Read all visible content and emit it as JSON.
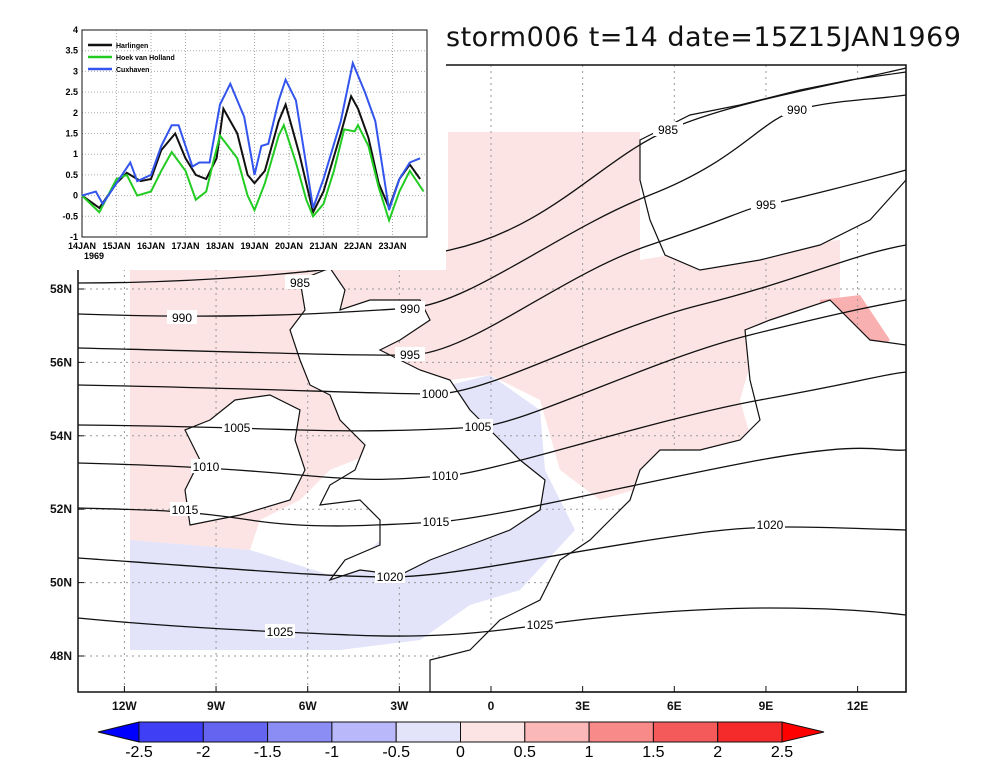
{
  "title": "storm006  t=14  date=15Z15JAN1969",
  "map": {
    "lon_ticks": [
      {
        "v": -12,
        "label": "12W"
      },
      {
        "v": -9,
        "label": "9W"
      },
      {
        "v": -6,
        "label": "6W"
      },
      {
        "v": -3,
        "label": "3W"
      },
      {
        "v": 0,
        "label": "0"
      },
      {
        "v": 3,
        "label": "3E"
      },
      {
        "v": 6,
        "label": "6E"
      },
      {
        "v": 9,
        "label": "9E"
      },
      {
        "v": 12,
        "label": "12E"
      }
    ],
    "lat_ticks": [
      {
        "v": 48,
        "label": "48N"
      },
      {
        "v": 50,
        "label": "50N"
      },
      {
        "v": 52,
        "label": "52N"
      },
      {
        "v": 54,
        "label": "54N"
      },
      {
        "v": 56,
        "label": "56N"
      },
      {
        "v": 58,
        "label": "58N"
      }
    ],
    "isobar_labels": [
      "985",
      "985",
      "990",
      "990",
      "990",
      "995",
      "995",
      "1000",
      "1005",
      "1005",
      "1010",
      "1010",
      "1015",
      "1015",
      "1020",
      "1020",
      "1025",
      "1025"
    ]
  },
  "colorbar": {
    "labels": [
      "-2.5",
      "-2",
      "-1.5",
      "-1",
      "-0.5",
      "0",
      "0.5",
      "1",
      "1.5",
      "2",
      "2.5"
    ],
    "colors": [
      "#0000ff",
      "#3f3ff5",
      "#6464f0",
      "#8c8cf5",
      "#b8b8fa",
      "#e3e3fa",
      "#fde4e4",
      "#fbb8b8",
      "#f98a8a",
      "#f55a5a",
      "#f52a2a",
      "#ff0000"
    ]
  },
  "chart_data": {
    "type": "line",
    "title": "",
    "xlabel": "",
    "ylabel": "",
    "ylim": [
      -1,
      4
    ],
    "xlim_days": [
      0,
      10
    ],
    "x_tick_labels": [
      "14JAN",
      "15JAN",
      "16JAN",
      "17JAN",
      "18JAN",
      "19JAN",
      "20JAN",
      "21JAN",
      "22JAN",
      "23JAN"
    ],
    "x_year_label": "1969",
    "y_tick_labels": [
      "-1",
      "-0.5",
      "0",
      "0.5",
      "1",
      "1.5",
      "2",
      "2.5",
      "3",
      "3.5",
      "4"
    ],
    "legend_position": "top-left",
    "grid": true,
    "series": [
      {
        "name": "Harlingen",
        "color": "#111111",
        "x": [
          0,
          0.5,
          1,
          1.3,
          1.7,
          2,
          2.3,
          2.7,
          3,
          3.3,
          3.6,
          3.9,
          4.1,
          4.5,
          4.8,
          5,
          5.3,
          5.7,
          5.9,
          6.3,
          6.7,
          7,
          7.5,
          7.8,
          8,
          8.3,
          8.6,
          8.9,
          9.2,
          9.5,
          9.8
        ],
        "y": [
          0,
          -0.3,
          0.3,
          0.55,
          0.35,
          0.4,
          1.1,
          1.5,
          0.9,
          0.5,
          0.4,
          0.9,
          2.1,
          1.5,
          0.5,
          0.3,
          0.6,
          1.8,
          2.2,
          1.0,
          -0.4,
          0.1,
          1.5,
          2.4,
          2.1,
          1.4,
          0.3,
          -0.3,
          0.4,
          0.75,
          0.4
        ]
      },
      {
        "name": "Hoek van Holland",
        "color": "#22cc22",
        "x": [
          0,
          0.5,
          1,
          1.3,
          1.6,
          2,
          2.3,
          2.6,
          3,
          3.3,
          3.6,
          3.8,
          4,
          4.5,
          4.8,
          5,
          5.3,
          5.7,
          5.85,
          6.2,
          6.5,
          6.7,
          7,
          7.3,
          7.6,
          7.9,
          8,
          8.3,
          8.6,
          8.9,
          9.2,
          9.5,
          9.9
        ],
        "y": [
          0,
          -0.4,
          0.4,
          0.5,
          0.0,
          0.1,
          0.6,
          1.05,
          0.6,
          -0.1,
          0.1,
          0.8,
          1.45,
          0.9,
          0,
          -0.35,
          0.3,
          1.45,
          1.7,
          0.8,
          -0.1,
          -0.5,
          -0.2,
          0.6,
          1.6,
          1.55,
          1.7,
          1.2,
          0.2,
          -0.6,
          0.1,
          0.6,
          0.1
        ]
      },
      {
        "name": "Cuxhaven",
        "color": "#3355ee",
        "x": [
          0,
          0.4,
          0.6,
          1,
          1.4,
          1.6,
          2,
          2.3,
          2.6,
          2.8,
          3.2,
          3.4,
          3.7,
          4,
          4.3,
          4.7,
          5,
          5.2,
          5.4,
          5.7,
          5.9,
          6.2,
          6.7,
          7,
          7.5,
          7.85,
          8.2,
          8.5,
          8.9,
          9.2,
          9.5,
          9.8
        ],
        "y": [
          0,
          0.1,
          -0.2,
          0.3,
          0.8,
          0.35,
          0.5,
          1.2,
          1.7,
          1.7,
          0.7,
          0.8,
          0.8,
          2.2,
          2.7,
          1.9,
          0.5,
          1.2,
          1.25,
          2.3,
          2.8,
          2.3,
          -0.3,
          0.4,
          1.8,
          3.2,
          2.5,
          1.8,
          -0.35,
          0.4,
          0.8,
          0.9
        ]
      }
    ]
  }
}
